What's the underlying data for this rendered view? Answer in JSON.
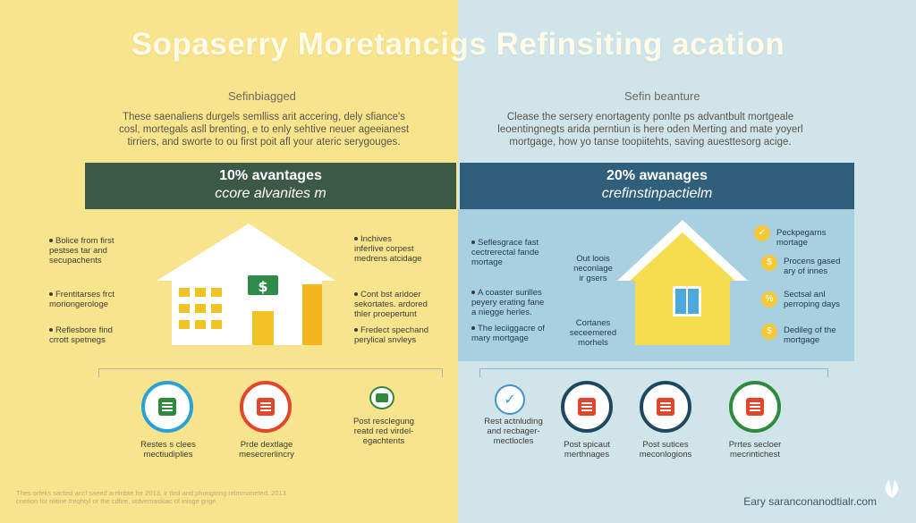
{
  "title": "Sopaserry Moretancigs Refinsiting acation",
  "left": {
    "subhead": "Sefinbiagged",
    "intro": [
      "These saenaliens durgels semlliss arit accering, dely sfiance's",
      "cosl, mortegals asll brenting, e to enly sehtive neuer ageeianest",
      "tirriers, and sworte to ou first poit afl your ateric serygouges."
    ],
    "banner_line1": "10% avantages",
    "banner_line2": "ccore alvanites m",
    "notes_left": [
      [
        "Bolice from first",
        "pestses tar and",
        "secupachents"
      ],
      [
        "Frentitarses frct",
        "moriongerologe"
      ],
      [
        "Reflesbore find",
        "crrott spetnegs"
      ]
    ],
    "notes_right": [
      [
        "Inchives",
        "inferlive corpest",
        "medrens atcidage"
      ],
      [
        "Cont bst aridoer",
        "sekortates. ardored",
        "thler proepertunt"
      ],
      [
        "Fredect spechand",
        "perylical snvleys"
      ]
    ],
    "bottom": [
      {
        "caption": [
          "Restes s clees",
          "mectiudiplies"
        ],
        "color": "#29a0d6"
      },
      {
        "caption": [
          "Prde dextlage",
          "mesecrerlincry"
        ],
        "color": "#e2462c"
      },
      {
        "caption": [
          "Post resclegung",
          "reatd red virdel-",
          "egachtents"
        ],
        "color": "#2f8a3d"
      }
    ]
  },
  "right": {
    "subhead": "Sefin beanture",
    "intro": [
      "Clease the sersery enortagenty ponlte ps advantbult mortgeale",
      "leoentingnegts arida perntiun is here oden Merting and mate yoyerl",
      "mortgage, how yo tanse toopiitehts, saving auesttesorg acige."
    ],
    "banner_line1": "20% awanages",
    "banner_line2": "crefinstinpactielm",
    "notes_left": [
      [
        "Seflesgrace fast",
        "cectrerectal fande",
        "mortage"
      ],
      [
        "A coaster surilles",
        "peyery erating fane",
        "a niegge herles."
      ],
      [
        "The leciiggacre of",
        "mary mortgage"
      ]
    ],
    "notes_mid": [
      [
        "Out loois",
        "neconlage",
        "ir gsers"
      ],
      [
        "Cortanes",
        "seceemered",
        "morhels"
      ]
    ],
    "notes_right": [
      [
        "Peckpegarns",
        "mortage"
      ],
      [
        "Procens gased",
        "ary of innes"
      ],
      [
        "Sectsal anl",
        "perroping days"
      ],
      [
        "Dedileg of the",
        "mortgage"
      ]
    ],
    "bottom": [
      {
        "caption": [
          "Rest actnluding",
          "and recbager-",
          "mectlocles"
        ],
        "color": "#3f93c8"
      },
      {
        "caption": [
          "Post spicaut",
          "merthnages"
        ],
        "color": "#1f4860"
      },
      {
        "caption": [
          "Post sutices",
          "meconlogions"
        ],
        "color": "#1f4860"
      },
      {
        "caption": [
          "Prrtes secloer",
          "mecrintichest"
        ],
        "color": "#2f8a3d"
      }
    ]
  },
  "footer_left": [
    "Thes orfeks sacted ancl saeed arrtiribte for 2013, ir tled and phonginng relmmaneted, 2013",
    "cnetion for nlitine treqhtyl or the cdfire, stdvemaskiac of inisge grige."
  ],
  "footer_right": "Eary saranconanodtialr.com",
  "house_sign": "$",
  "colors": {
    "left_bg": "#f8e48c",
    "right_bg": "#cfe5ea",
    "banner_left": "#3c5947",
    "banner_right": "#2f5f7a"
  }
}
